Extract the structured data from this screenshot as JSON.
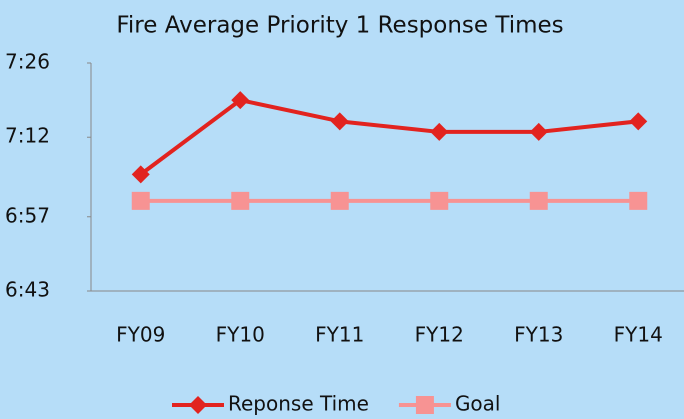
{
  "chart_data": {
    "type": "line",
    "title": "Fire Average Priority 1 Response Times",
    "categories": [
      "FY09",
      "FY10",
      "FY11",
      "FY12",
      "FY13",
      "FY14"
    ],
    "series": [
      {
        "name": "Reponse Time",
        "color": "#e2231f",
        "marker": "diamond",
        "values": [
          425,
          439,
          435,
          433,
          433,
          435
        ]
      },
      {
        "name": "Goal",
        "color": "#f79393",
        "marker": "square",
        "values": [
          420,
          420,
          420,
          420,
          420,
          420
        ]
      }
    ],
    "ylim": [
      403,
      446
    ],
    "yticks": [
      {
        "value": 403,
        "label": "6:43"
      },
      {
        "value": 417,
        "label": "6:57"
      },
      {
        "value": 432,
        "label": "7:12"
      },
      {
        "value": 446,
        "label": "7:26"
      }
    ],
    "legend": "bottom"
  }
}
